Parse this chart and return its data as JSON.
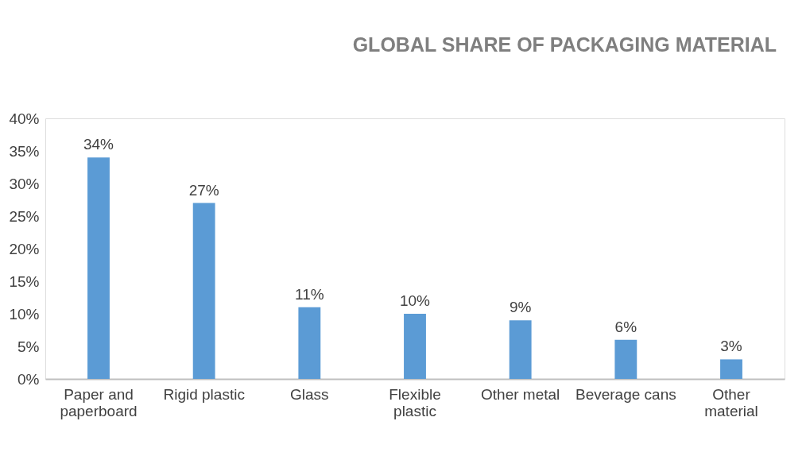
{
  "chart_data": {
    "type": "bar",
    "title": "GLOBAL SHARE OF PACKAGING MATERIAL",
    "categories": [
      "Paper and paperboard",
      "Rigid plastic",
      "Glass",
      "Flexible plastic",
      "Other metal",
      "Beverage cans",
      "Other material"
    ],
    "values": [
      34,
      27,
      11,
      10,
      9,
      6,
      3
    ],
    "value_labels": [
      "34%",
      "27%",
      "11%",
      "10%",
      "9%",
      "6%",
      "3%"
    ],
    "color": "#5b9bd5",
    "ylim": [
      0,
      40
    ],
    "yticks": [
      {
        "value": 0,
        "label": "0%"
      },
      {
        "value": 5,
        "label": "5%"
      },
      {
        "value": 10,
        "label": "10%"
      },
      {
        "value": 15,
        "label": "15%"
      },
      {
        "value": 20,
        "label": "20%"
      },
      {
        "value": 25,
        "label": "25%"
      },
      {
        "value": 30,
        "label": "30%"
      },
      {
        "value": 35,
        "label": "35%"
      },
      {
        "value": 40,
        "label": "40%"
      }
    ],
    "grid": false
  }
}
